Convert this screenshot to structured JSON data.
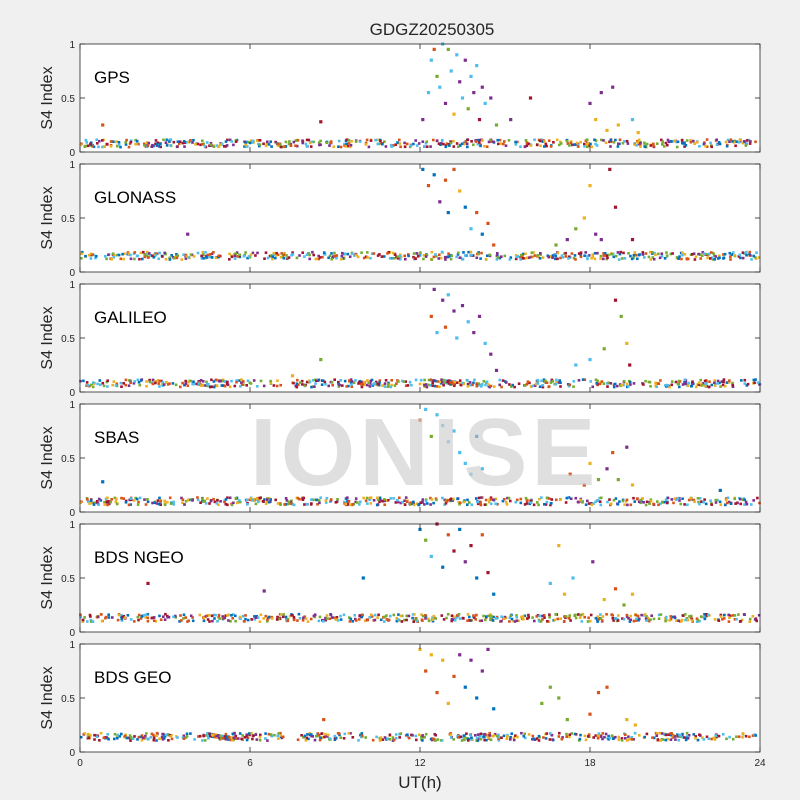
{
  "chart_data": {
    "type": "scatter",
    "title": "GDGZ20250305",
    "xlabel": "UT(h)",
    "ylabel": "S4 Index",
    "xlim": [
      0,
      24
    ],
    "ylim": [
      0,
      1
    ],
    "xticks": [
      0,
      6,
      12,
      18,
      24
    ],
    "xtick_labels": [
      "0",
      "6",
      "12",
      "18",
      "24"
    ],
    "yticks": [
      0,
      0.5,
      1
    ],
    "ytick_labels": [
      "0",
      "0.5",
      "1"
    ],
    "series_colors": [
      "#0072bd",
      "#d95319",
      "#edb120",
      "#7e2f8e",
      "#77ac30",
      "#4dbeee",
      "#a2142f"
    ],
    "panels": [
      {
        "label": "GPS",
        "baseline": 0.08,
        "points": [
          {
            "x": 12.1,
            "y": 0.3,
            "s": 3
          },
          {
            "x": 12.3,
            "y": 0.55,
            "s": 5
          },
          {
            "x": 12.4,
            "y": 0.85,
            "s": 5
          },
          {
            "x": 12.5,
            "y": 0.95,
            "s": 1
          },
          {
            "x": 12.6,
            "y": 0.7,
            "s": 4
          },
          {
            "x": 12.7,
            "y": 0.6,
            "s": 5
          },
          {
            "x": 12.8,
            "y": 1.0,
            "s": 5
          },
          {
            "x": 12.9,
            "y": 0.45,
            "s": 3
          },
          {
            "x": 13.0,
            "y": 0.95,
            "s": 4
          },
          {
            "x": 13.1,
            "y": 0.75,
            "s": 5
          },
          {
            "x": 13.2,
            "y": 0.35,
            "s": 2
          },
          {
            "x": 13.3,
            "y": 0.9,
            "s": 5
          },
          {
            "x": 13.4,
            "y": 0.65,
            "s": 3
          },
          {
            "x": 13.5,
            "y": 0.5,
            "s": 5
          },
          {
            "x": 13.6,
            "y": 0.85,
            "s": 3
          },
          {
            "x": 13.7,
            "y": 0.4,
            "s": 4
          },
          {
            "x": 13.8,
            "y": 0.7,
            "s": 5
          },
          {
            "x": 13.9,
            "y": 0.55,
            "s": 3
          },
          {
            "x": 14.0,
            "y": 0.8,
            "s": 5
          },
          {
            "x": 14.1,
            "y": 0.3,
            "s": 6
          },
          {
            "x": 14.2,
            "y": 0.6,
            "s": 3
          },
          {
            "x": 14.3,
            "y": 0.45,
            "s": 5
          },
          {
            "x": 14.5,
            "y": 0.5,
            "s": 3
          },
          {
            "x": 14.7,
            "y": 0.25,
            "s": 4
          },
          {
            "x": 15.2,
            "y": 0.3,
            "s": 3
          },
          {
            "x": 15.9,
            "y": 0.5,
            "s": 6
          },
          {
            "x": 18.0,
            "y": 0.45,
            "s": 3
          },
          {
            "x": 18.2,
            "y": 0.3,
            "s": 2
          },
          {
            "x": 18.4,
            "y": 0.55,
            "s": 3
          },
          {
            "x": 18.6,
            "y": 0.2,
            "s": 2
          },
          {
            "x": 18.8,
            "y": 0.6,
            "s": 3
          },
          {
            "x": 19.0,
            "y": 0.25,
            "s": 2
          },
          {
            "x": 19.5,
            "y": 0.3,
            "s": 5
          },
          {
            "x": 19.7,
            "y": 0.18,
            "s": 2
          },
          {
            "x": 0.8,
            "y": 0.25,
            "s": 1
          },
          {
            "x": 8.5,
            "y": 0.28,
            "s": 6
          }
        ]
      },
      {
        "label": "GLONASS",
        "baseline": 0.15,
        "points": [
          {
            "x": 12.1,
            "y": 0.95,
            "s": 0
          },
          {
            "x": 12.3,
            "y": 0.8,
            "s": 1
          },
          {
            "x": 12.5,
            "y": 0.9,
            "s": 0
          },
          {
            "x": 12.7,
            "y": 0.65,
            "s": 3
          },
          {
            "x": 12.9,
            "y": 0.85,
            "s": 1
          },
          {
            "x": 13.0,
            "y": 0.55,
            "s": 0
          },
          {
            "x": 13.2,
            "y": 0.95,
            "s": 1
          },
          {
            "x": 13.4,
            "y": 0.75,
            "s": 2
          },
          {
            "x": 13.6,
            "y": 0.6,
            "s": 0
          },
          {
            "x": 13.8,
            "y": 0.4,
            "s": 5
          },
          {
            "x": 14.0,
            "y": 0.55,
            "s": 1
          },
          {
            "x": 14.2,
            "y": 0.35,
            "s": 0
          },
          {
            "x": 14.4,
            "y": 0.45,
            "s": 1
          },
          {
            "x": 14.6,
            "y": 0.25,
            "s": 1
          },
          {
            "x": 17.2,
            "y": 0.3,
            "s": 3
          },
          {
            "x": 17.5,
            "y": 0.4,
            "s": 4
          },
          {
            "x": 17.8,
            "y": 0.5,
            "s": 2
          },
          {
            "x": 18.0,
            "y": 0.8,
            "s": 2
          },
          {
            "x": 18.2,
            "y": 0.35,
            "s": 3
          },
          {
            "x": 18.4,
            "y": 0.3,
            "s": 3
          },
          {
            "x": 18.7,
            "y": 0.95,
            "s": 6
          },
          {
            "x": 18.9,
            "y": 0.6,
            "s": 6
          },
          {
            "x": 19.5,
            "y": 0.3,
            "s": 6
          },
          {
            "x": 16.8,
            "y": 0.25,
            "s": 4
          },
          {
            "x": 3.8,
            "y": 0.35,
            "s": 3
          }
        ]
      },
      {
        "label": "GALILEO",
        "baseline": 0.08,
        "points": [
          {
            "x": 12.4,
            "y": 0.7,
            "s": 1
          },
          {
            "x": 12.5,
            "y": 0.95,
            "s": 3
          },
          {
            "x": 12.6,
            "y": 0.55,
            "s": 5
          },
          {
            "x": 12.8,
            "y": 0.85,
            "s": 3
          },
          {
            "x": 12.9,
            "y": 0.6,
            "s": 1
          },
          {
            "x": 13.0,
            "y": 0.9,
            "s": 5
          },
          {
            "x": 13.2,
            "y": 0.75,
            "s": 3
          },
          {
            "x": 13.3,
            "y": 0.5,
            "s": 5
          },
          {
            "x": 13.5,
            "y": 0.8,
            "s": 3
          },
          {
            "x": 13.7,
            "y": 0.65,
            "s": 5
          },
          {
            "x": 13.9,
            "y": 0.55,
            "s": 3
          },
          {
            "x": 14.1,
            "y": 0.7,
            "s": 3
          },
          {
            "x": 14.3,
            "y": 0.45,
            "s": 5
          },
          {
            "x": 14.5,
            "y": 0.35,
            "s": 3
          },
          {
            "x": 14.7,
            "y": 0.2,
            "s": 3
          },
          {
            "x": 17.5,
            "y": 0.25,
            "s": 5
          },
          {
            "x": 18.0,
            "y": 0.3,
            "s": 5
          },
          {
            "x": 18.5,
            "y": 0.4,
            "s": 4
          },
          {
            "x": 18.9,
            "y": 0.85,
            "s": 6
          },
          {
            "x": 19.1,
            "y": 0.7,
            "s": 4
          },
          {
            "x": 19.3,
            "y": 0.45,
            "s": 2
          },
          {
            "x": 19.4,
            "y": 0.25,
            "s": 6
          },
          {
            "x": 8.5,
            "y": 0.3,
            "s": 4
          },
          {
            "x": 7.5,
            "y": 0.15,
            "s": 2
          }
        ]
      },
      {
        "label": "SBAS",
        "baseline": 0.1,
        "points": [
          {
            "x": 12.0,
            "y": 0.85,
            "s": 1
          },
          {
            "x": 12.2,
            "y": 0.95,
            "s": 5
          },
          {
            "x": 12.4,
            "y": 0.7,
            "s": 4
          },
          {
            "x": 12.6,
            "y": 0.9,
            "s": 5
          },
          {
            "x": 12.8,
            "y": 0.8,
            "s": 5
          },
          {
            "x": 13.0,
            "y": 0.65,
            "s": 5
          },
          {
            "x": 13.2,
            "y": 0.75,
            "s": 5
          },
          {
            "x": 13.4,
            "y": 0.55,
            "s": 5
          },
          {
            "x": 13.6,
            "y": 0.45,
            "s": 5
          },
          {
            "x": 13.8,
            "y": 0.35,
            "s": 5
          },
          {
            "x": 14.0,
            "y": 0.7,
            "s": 0
          },
          {
            "x": 14.2,
            "y": 0.4,
            "s": 5
          },
          {
            "x": 17.3,
            "y": 0.35,
            "s": 1
          },
          {
            "x": 17.8,
            "y": 0.25,
            "s": 1
          },
          {
            "x": 18.0,
            "y": 0.45,
            "s": 2
          },
          {
            "x": 18.3,
            "y": 0.3,
            "s": 4
          },
          {
            "x": 18.6,
            "y": 0.4,
            "s": 3
          },
          {
            "x": 18.8,
            "y": 0.55,
            "s": 1
          },
          {
            "x": 19.0,
            "y": 0.3,
            "s": 4
          },
          {
            "x": 19.3,
            "y": 0.6,
            "s": 3
          },
          {
            "x": 19.5,
            "y": 0.25,
            "s": 2
          },
          {
            "x": 0.8,
            "y": 0.28,
            "s": 0
          },
          {
            "x": 22.6,
            "y": 0.2,
            "s": 0
          }
        ]
      },
      {
        "label": "BDS NGEO",
        "baseline": 0.13,
        "points": [
          {
            "x": 12.0,
            "y": 0.95,
            "s": 0
          },
          {
            "x": 12.2,
            "y": 0.85,
            "s": 4
          },
          {
            "x": 12.4,
            "y": 0.7,
            "s": 5
          },
          {
            "x": 12.6,
            "y": 1.0,
            "s": 6
          },
          {
            "x": 12.8,
            "y": 0.6,
            "s": 0
          },
          {
            "x": 13.0,
            "y": 0.9,
            "s": 1
          },
          {
            "x": 13.2,
            "y": 0.75,
            "s": 6
          },
          {
            "x": 13.4,
            "y": 0.95,
            "s": 0
          },
          {
            "x": 13.6,
            "y": 0.65,
            "s": 3
          },
          {
            "x": 13.8,
            "y": 0.8,
            "s": 6
          },
          {
            "x": 14.0,
            "y": 0.5,
            "s": 0
          },
          {
            "x": 14.2,
            "y": 0.9,
            "s": 1
          },
          {
            "x": 14.4,
            "y": 0.55,
            "s": 6
          },
          {
            "x": 14.6,
            "y": 0.35,
            "s": 0
          },
          {
            "x": 16.6,
            "y": 0.45,
            "s": 5
          },
          {
            "x": 16.9,
            "y": 0.8,
            "s": 2
          },
          {
            "x": 17.1,
            "y": 0.35,
            "s": 2
          },
          {
            "x": 17.4,
            "y": 0.5,
            "s": 5
          },
          {
            "x": 18.1,
            "y": 0.65,
            "s": 3
          },
          {
            "x": 18.5,
            "y": 0.3,
            "s": 2
          },
          {
            "x": 18.9,
            "y": 0.4,
            "s": 1
          },
          {
            "x": 19.2,
            "y": 0.25,
            "s": 4
          },
          {
            "x": 19.5,
            "y": 0.35,
            "s": 2
          },
          {
            "x": 2.4,
            "y": 0.45,
            "s": 6
          },
          {
            "x": 6.5,
            "y": 0.38,
            "s": 3
          },
          {
            "x": 10.0,
            "y": 0.5,
            "s": 0
          }
        ]
      },
      {
        "label": "BDS GEO",
        "baseline": 0.14,
        "points": [
          {
            "x": 12.0,
            "y": 0.95,
            "s": 2
          },
          {
            "x": 12.2,
            "y": 0.75,
            "s": 1
          },
          {
            "x": 12.4,
            "y": 0.9,
            "s": 2
          },
          {
            "x": 12.6,
            "y": 0.55,
            "s": 1
          },
          {
            "x": 12.8,
            "y": 0.85,
            "s": 2
          },
          {
            "x": 13.0,
            "y": 0.45,
            "s": 2
          },
          {
            "x": 13.2,
            "y": 0.7,
            "s": 1
          },
          {
            "x": 13.4,
            "y": 0.9,
            "s": 3
          },
          {
            "x": 13.6,
            "y": 0.6,
            "s": 0
          },
          {
            "x": 13.8,
            "y": 0.85,
            "s": 3
          },
          {
            "x": 14.0,
            "y": 0.5,
            "s": 0
          },
          {
            "x": 14.2,
            "y": 0.75,
            "s": 3
          },
          {
            "x": 14.4,
            "y": 0.95,
            "s": 3
          },
          {
            "x": 14.6,
            "y": 0.4,
            "s": 0
          },
          {
            "x": 16.3,
            "y": 0.45,
            "s": 4
          },
          {
            "x": 16.6,
            "y": 0.6,
            "s": 4
          },
          {
            "x": 16.9,
            "y": 0.5,
            "s": 4
          },
          {
            "x": 17.2,
            "y": 0.3,
            "s": 4
          },
          {
            "x": 18.0,
            "y": 0.35,
            "s": 1
          },
          {
            "x": 18.3,
            "y": 0.55,
            "s": 1
          },
          {
            "x": 18.6,
            "y": 0.6,
            "s": 1
          },
          {
            "x": 19.3,
            "y": 0.3,
            "s": 2
          },
          {
            "x": 19.6,
            "y": 0.25,
            "s": 2
          },
          {
            "x": 8.6,
            "y": 0.3,
            "s": 1
          }
        ]
      }
    ]
  },
  "watermark": "IONISE"
}
